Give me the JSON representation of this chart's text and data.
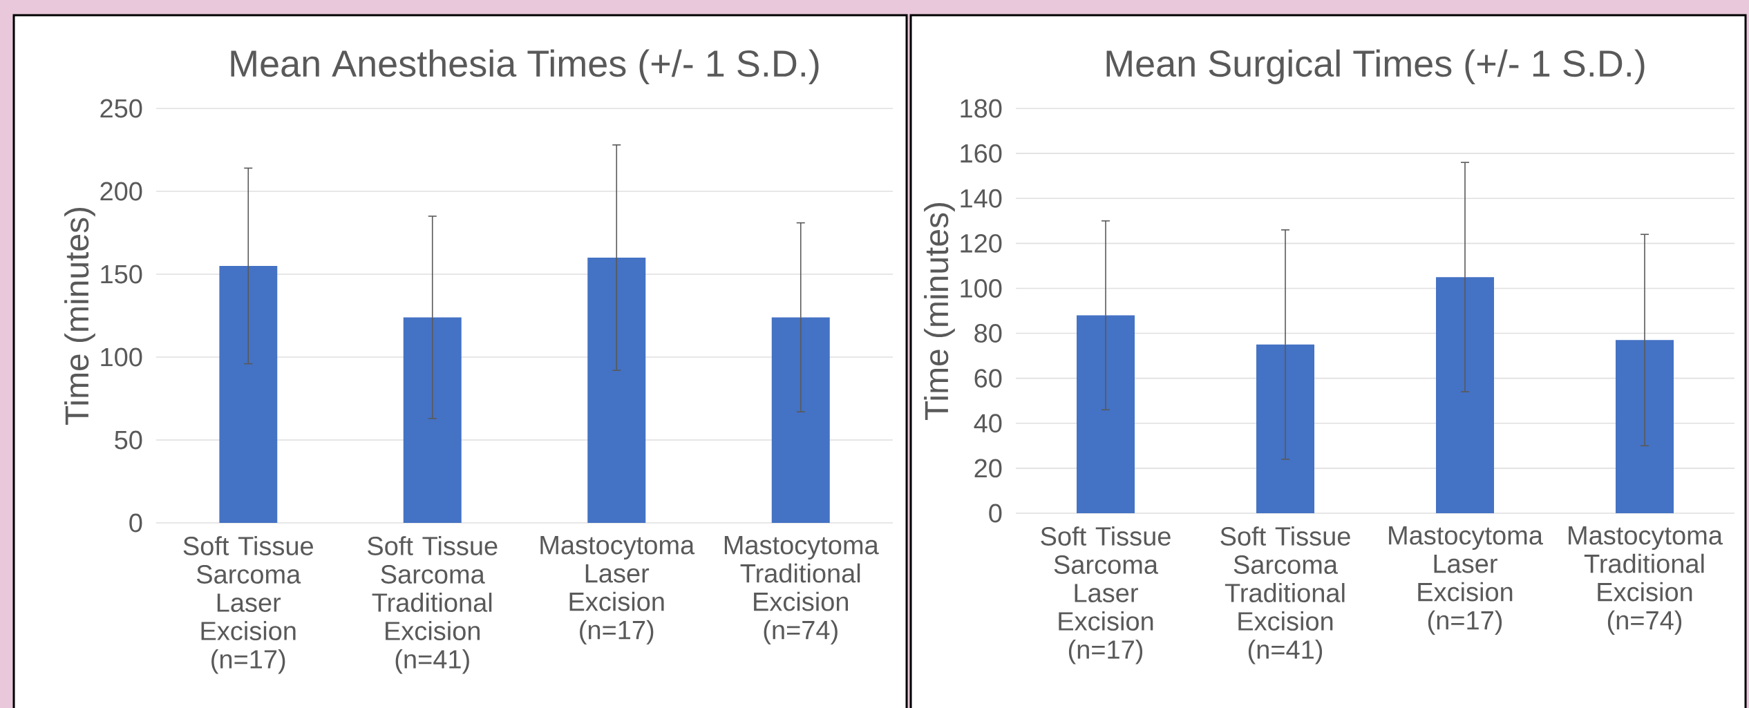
{
  "chart_data": [
    {
      "type": "bar",
      "title": "Mean Anesthesia Times (+/- 1 S.D.)",
      "ylabel": "Time (minutes)",
      "categories": [
        "Soft Tissue Sarcoma Laser Excision (n=17)",
        "Soft Tissue Sarcoma Traditional Excision (n=41)",
        "Mastocytoma Laser Excision (n=17)",
        "Mastocytoma Traditional Excision (n=74)"
      ],
      "values": [
        155,
        124,
        160,
        124
      ],
      "errors": [
        59,
        61,
        68,
        57
      ],
      "color": "#4472c4",
      "ylim": [
        0,
        250
      ],
      "yticks": [
        0,
        50,
        100,
        150,
        200,
        250
      ],
      "grid": "y"
    },
    {
      "type": "bar",
      "title": "Mean Surgical Times (+/- 1 S.D.)",
      "ylabel": "Time (minutes)",
      "categories": [
        "Soft Tissue Sarcoma Laser Excision (n=17)",
        "Soft Tissue Sarcoma Traditional Excision (n=41)",
        "Mastocytoma Laser Excision (n=17)",
        "Mastocytoma Traditional Excision (n=74)"
      ],
      "values": [
        88,
        75,
        105,
        77
      ],
      "errors": [
        42,
        51,
        51,
        47
      ],
      "color": "#4472c4",
      "ylim": [
        0,
        180
      ],
      "yticks": [
        0,
        20,
        40,
        60,
        80,
        100,
        120,
        140,
        160,
        180
      ],
      "grid": "y"
    }
  ]
}
